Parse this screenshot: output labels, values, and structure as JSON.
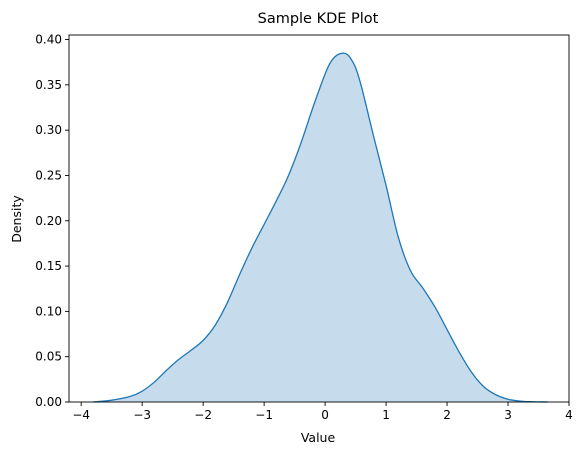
{
  "chart_data": {
    "type": "area",
    "title": "Sample KDE Plot",
    "xlabel": "Value",
    "ylabel": "Density",
    "xlim": [
      -4.2,
      4.0
    ],
    "ylim": [
      0.0,
      0.405
    ],
    "xticks": [
      -4,
      -3,
      -2,
      -1,
      0,
      1,
      2,
      3,
      4
    ],
    "xtick_labels": [
      "−4",
      "−3",
      "−2",
      "−1",
      "0",
      "1",
      "2",
      "3",
      "4"
    ],
    "yticks": [
      0.0,
      0.05,
      0.1,
      0.15,
      0.2,
      0.25,
      0.3,
      0.35,
      0.4
    ],
    "ytick_labels": [
      "0.00",
      "0.05",
      "0.10",
      "0.15",
      "0.20",
      "0.25",
      "0.30",
      "0.35",
      "0.40"
    ],
    "grid": false,
    "series": [
      {
        "x": [
          -3.8,
          -3.5,
          -3.2,
          -3.0,
          -2.8,
          -2.6,
          -2.4,
          -2.2,
          -2.0,
          -1.8,
          -1.6,
          -1.4,
          -1.2,
          -1.0,
          -0.8,
          -0.6,
          -0.4,
          -0.2,
          0.0,
          0.1,
          0.2,
          0.3,
          0.35,
          0.4,
          0.5,
          0.6,
          0.8,
          1.0,
          1.2,
          1.4,
          1.6,
          1.8,
          2.0,
          2.2,
          2.4,
          2.6,
          2.8,
          3.0,
          3.2,
          3.4,
          3.65
        ],
        "y": [
          0.0,
          0.002,
          0.006,
          0.012,
          0.022,
          0.035,
          0.047,
          0.057,
          0.068,
          0.085,
          0.11,
          0.141,
          0.17,
          0.196,
          0.222,
          0.25,
          0.285,
          0.325,
          0.362,
          0.376,
          0.383,
          0.385,
          0.384,
          0.381,
          0.369,
          0.347,
          0.292,
          0.239,
          0.182,
          0.145,
          0.126,
          0.105,
          0.08,
          0.055,
          0.033,
          0.017,
          0.008,
          0.003,
          0.001,
          0.0003,
          0.0
        ],
        "line_color": "#1f77b4",
        "fill_color": "#c6dced"
      }
    ]
  }
}
